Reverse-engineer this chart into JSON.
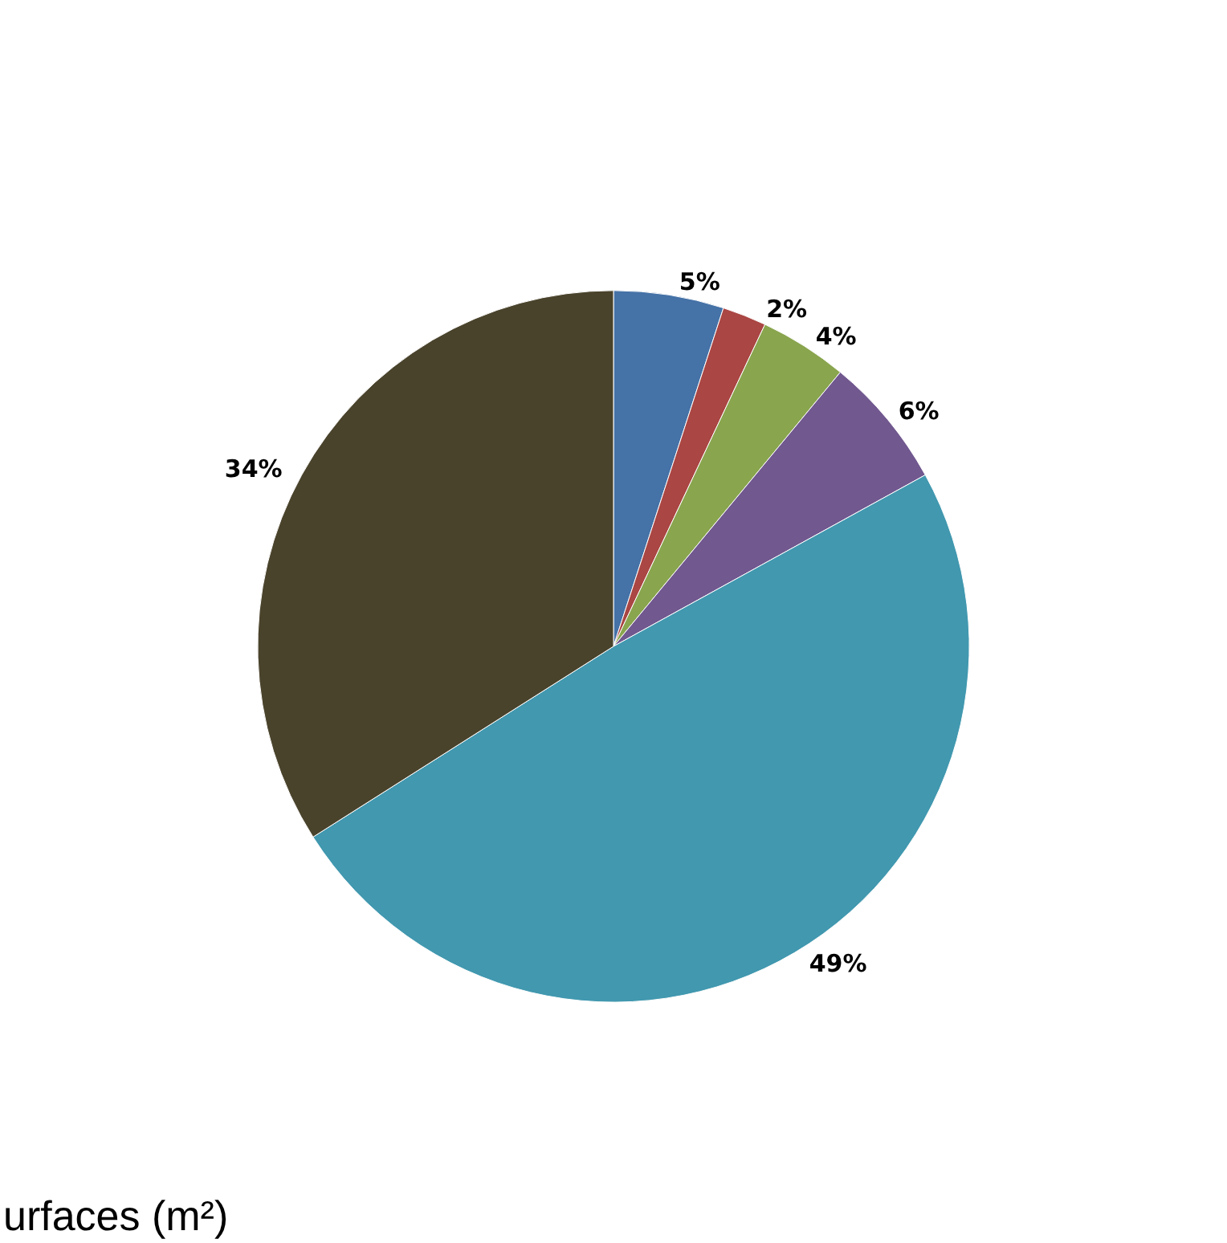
{
  "chart_data": {
    "type": "pie",
    "categories": [
      null,
      null,
      null,
      null,
      null,
      null
    ],
    "values": [
      5,
      2,
      4,
      6,
      49,
      34
    ],
    "colors": [
      "#4572a7",
      "#aa4643",
      "#89a54e",
      "#71588f",
      "#4198af",
      "#4a432c"
    ],
    "value_labels": [
      "5%",
      "2%",
      "4%",
      "6%",
      "49%",
      "34%"
    ],
    "annotations": [
      "urfaces (m²)"
    ]
  }
}
